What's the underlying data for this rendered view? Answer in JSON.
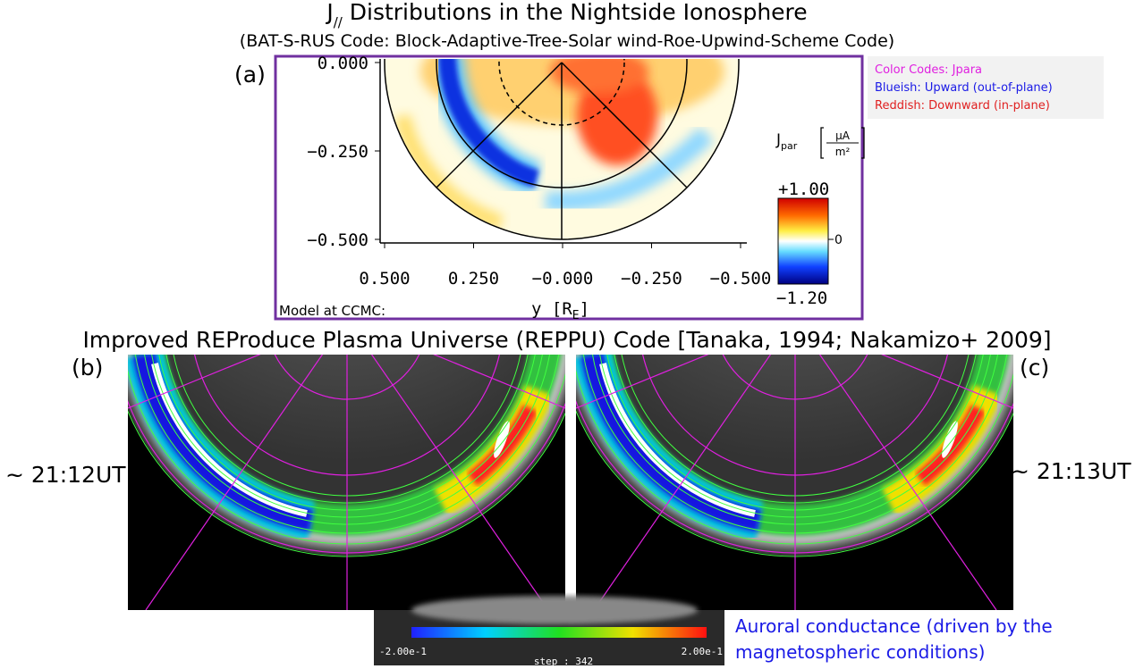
{
  "header": {
    "title_main": "J",
    "title_sub": "//",
    "title_rest": " Distributions in the Nightside Ionosphere",
    "subtitle": "(BAT-S-RUS Code: Block-Adaptive-Tree-Solar wind-Roe-Upwind-Scheme Code)"
  },
  "panel_a": {
    "label": "(a)",
    "yticks": [
      "0.000",
      "−0.250",
      "−0.500"
    ],
    "xticks": [
      "0.500",
      "0.250",
      "−0.000",
      "−0.250",
      "−0.500"
    ],
    "xlabel": "y [R",
    "xlabel_sub": "E",
    "xlabel_end": "]",
    "credit": "Model at CCMC:",
    "colorbar": {
      "title": "J",
      "title_sub": "par",
      "unit_num": "µA",
      "unit_den": "m²",
      "max": "+1.00",
      "mid": "0",
      "min": "−1.20"
    }
  },
  "legend": {
    "lines": [
      "Color Codes: Jpara",
      "Blueish: Upward (out-of-plane)",
      "Reddish: Downward (in-plane)"
    ]
  },
  "section_b": {
    "title": "Improved REProduce Plasma Universe (REPPU) Code [Tanaka, 1994; Nakamizo+ 2009]",
    "panel_b": {
      "label": "(b)",
      "time": "~ 21:12UT"
    },
    "panel_c": {
      "label": "(c)",
      "time": "~ 21:13UT"
    },
    "colorbar": {
      "min": "-2.00e-1",
      "max": "2.00e-1",
      "step": "step : 342"
    },
    "caption": [
      "Auroral conductance (driven by the",
      "magnetospheric conditions)"
    ]
  }
}
